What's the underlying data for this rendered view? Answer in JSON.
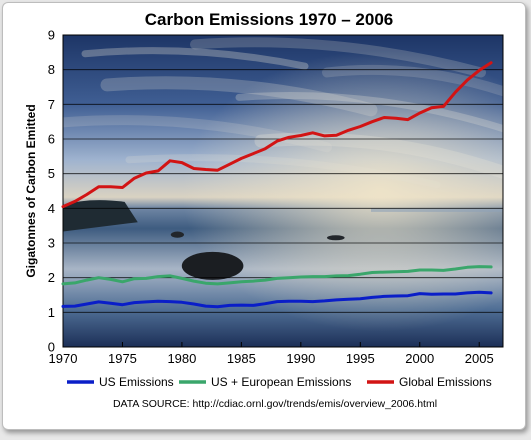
{
  "chart_data": {
    "type": "line",
    "title": "Carbon Emissions 1970 – 2006",
    "ylabel": "Gigatonnes of Carbon Emitted",
    "xlabel": "",
    "xlim": [
      1970,
      2007
    ],
    "ylim": [
      0,
      9
    ],
    "xticks": [
      "1970",
      "1975",
      "1980",
      "1985",
      "1990",
      "1995",
      "2000",
      "2005"
    ],
    "yticks": [
      "0",
      "1",
      "2",
      "3",
      "4",
      "5",
      "6",
      "7",
      "8",
      "9"
    ],
    "grid": true,
    "legend_position": "bottom",
    "x": [
      1970,
      1971,
      1972,
      1973,
      1974,
      1975,
      1976,
      1977,
      1978,
      1979,
      1980,
      1981,
      1982,
      1983,
      1984,
      1985,
      1986,
      1987,
      1988,
      1989,
      1990,
      1991,
      1992,
      1993,
      1994,
      1995,
      1996,
      1997,
      1998,
      1999,
      2000,
      2001,
      2002,
      2003,
      2004,
      2005,
      2006
    ],
    "series": [
      {
        "name": "US Emissions",
        "color": "#0a1ec8",
        "values": [
          1.17,
          1.18,
          1.24,
          1.3,
          1.26,
          1.22,
          1.28,
          1.3,
          1.32,
          1.31,
          1.29,
          1.24,
          1.18,
          1.16,
          1.2,
          1.21,
          1.2,
          1.25,
          1.31,
          1.32,
          1.32,
          1.31,
          1.33,
          1.36,
          1.38,
          1.39,
          1.43,
          1.46,
          1.47,
          1.48,
          1.54,
          1.52,
          1.53,
          1.53,
          1.56,
          1.58,
          1.56
        ]
      },
      {
        "name": "US + European Emissions",
        "color": "#3aa66b",
        "values": [
          1.82,
          1.85,
          1.93,
          2.0,
          1.95,
          1.88,
          1.97,
          1.98,
          2.03,
          2.05,
          1.98,
          1.9,
          1.84,
          1.82,
          1.85,
          1.88,
          1.9,
          1.93,
          1.98,
          2.0,
          2.02,
          2.03,
          2.03,
          2.05,
          2.06,
          2.1,
          2.15,
          2.16,
          2.17,
          2.18,
          2.22,
          2.22,
          2.21,
          2.25,
          2.3,
          2.32,
          2.31
        ]
      },
      {
        "name": "Global Emissions",
        "color": "#d21414",
        "values": [
          4.05,
          4.2,
          4.4,
          4.62,
          4.62,
          4.6,
          4.87,
          5.02,
          5.08,
          5.37,
          5.32,
          5.15,
          5.12,
          5.1,
          5.27,
          5.44,
          5.58,
          5.72,
          5.94,
          6.05,
          6.1,
          6.18,
          6.09,
          6.11,
          6.25,
          6.36,
          6.5,
          6.62,
          6.6,
          6.56,
          6.75,
          6.9,
          6.94,
          7.35,
          7.7,
          7.98,
          8.2
        ]
      }
    ],
    "data_source": "DATA SOURCE: http://cdiac.ornl.gov/trends/emis/overview_2006.html"
  }
}
